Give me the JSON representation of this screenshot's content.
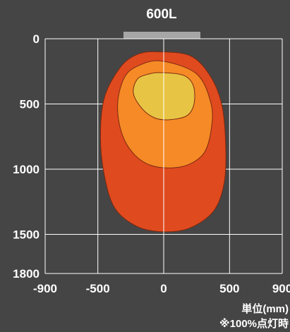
{
  "chart_data": {
    "type": "area",
    "title": "600L",
    "x_ticks": [
      "-900",
      "-500",
      "0",
      "500",
      "900"
    ],
    "x_tick_values": [
      -900,
      -500,
      0,
      500,
      900
    ],
    "y_ticks": [
      "0",
      "500",
      "1000",
      "1500",
      "1800"
    ],
    "y_tick_values": [
      0,
      500,
      1000,
      1500,
      1800
    ],
    "xlim": [
      -900,
      900
    ],
    "ylim": [
      0,
      1800
    ],
    "y_inverted": true,
    "grid": true,
    "unit_label": "単位(mm)",
    "note": "※100%点灯時",
    "zones": [
      {
        "color": "#e04a1f",
        "points": [
          [
            -50,
            100
          ],
          [
            200,
            130
          ],
          [
            350,
            280
          ],
          [
            440,
            500
          ],
          [
            470,
            800
          ],
          [
            460,
            1100
          ],
          [
            380,
            1320
          ],
          [
            200,
            1450
          ],
          [
            0,
            1480
          ],
          [
            -200,
            1440
          ],
          [
            -370,
            1300
          ],
          [
            -450,
            1050
          ],
          [
            -480,
            750
          ],
          [
            -450,
            450
          ],
          [
            -330,
            220
          ],
          [
            -200,
            120
          ]
        ]
      },
      {
        "color": "#f58a26",
        "points": [
          [
            -20,
            170
          ],
          [
            250,
            270
          ],
          [
            360,
            500
          ],
          [
            360,
            700
          ],
          [
            310,
            870
          ],
          [
            200,
            960
          ],
          [
            60,
            990
          ],
          [
            -100,
            970
          ],
          [
            -230,
            880
          ],
          [
            -320,
            720
          ],
          [
            -350,
            500
          ],
          [
            -300,
            300
          ],
          [
            -200,
            210
          ]
        ]
      },
      {
        "color": "#e8c444",
        "points": [
          [
            -20,
            260
          ],
          [
            150,
            280
          ],
          [
            225,
            360
          ],
          [
            230,
            500
          ],
          [
            175,
            590
          ],
          [
            50,
            620
          ],
          [
            -60,
            610
          ],
          [
            -160,
            540
          ],
          [
            -230,
            420
          ],
          [
            -200,
            310
          ],
          [
            -110,
            270
          ]
        ]
      }
    ]
  }
}
